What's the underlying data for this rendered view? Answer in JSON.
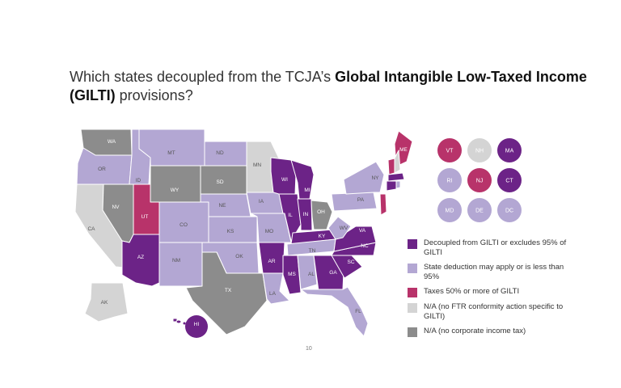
{
  "title": {
    "prefix": "Which states decoupled from the TCJA’s ",
    "bold": "Global Intangible Low-Taxed Income (GILTI)",
    "suffix": " provisions?"
  },
  "colors": {
    "decoupled": "#6c2387",
    "deduction": "#b3a7d3",
    "taxes50": "#b8336a",
    "na_conformity": "#d4d4d4",
    "na_no_tax": "#8c8c8c"
  },
  "legend": [
    {
      "key": "decoupled",
      "label": "Decoupled from GILTI or excludes 95% of GILTI"
    },
    {
      "key": "deduction",
      "label": "State deduction may apply or is less than 95%"
    },
    {
      "key": "taxes50",
      "label": "Taxes 50% or more of GILTI"
    },
    {
      "key": "na_conformity",
      "label": "N/A (no FTR conformity action specific to GILTI)"
    },
    {
      "key": "na_no_tax",
      "label": "N/A (no corporate income tax)"
    }
  ],
  "states": {
    "WA": "na_no_tax",
    "OR": "deduction",
    "CA": "na_conformity",
    "NV": "na_no_tax",
    "ID": "deduction",
    "MT": "deduction",
    "WY": "na_no_tax",
    "UT": "taxes50",
    "AZ": "decoupled",
    "CO": "deduction",
    "NM": "deduction",
    "ND": "deduction",
    "SD": "na_no_tax",
    "NE": "deduction",
    "KS": "deduction",
    "OK": "deduction",
    "TX": "na_no_tax",
    "MN": "na_conformity",
    "IA": "deduction",
    "MO": "deduction",
    "AR": "decoupled",
    "LA": "deduction",
    "WI": "decoupled",
    "IL": "decoupled",
    "MI": "decoupled",
    "IN": "decoupled",
    "OH": "na_no_tax",
    "KY": "decoupled",
    "TN": "deduction",
    "MS": "decoupled",
    "AL": "deduction",
    "GA": "decoupled",
    "FL": "deduction",
    "SC": "decoupled",
    "NC": "decoupled",
    "VA": "decoupled",
    "WV": "deduction",
    "PA": "deduction",
    "NY": "deduction",
    "ME": "taxes50",
    "AK": "na_conformity",
    "HI": "decoupled"
  },
  "northeast_circles": [
    {
      "abbr": "VT",
      "cat": "taxes50"
    },
    {
      "abbr": "NH",
      "cat": "na_conformity"
    },
    {
      "abbr": "MA",
      "cat": "decoupled"
    },
    {
      "abbr": "RI",
      "cat": "deduction"
    },
    {
      "abbr": "NJ",
      "cat": "taxes50"
    },
    {
      "abbr": "CT",
      "cat": "decoupled"
    },
    {
      "abbr": "MD",
      "cat": "deduction"
    },
    {
      "abbr": "DE",
      "cat": "deduction"
    },
    {
      "abbr": "DC",
      "cat": "deduction"
    }
  ],
  "page_number": "10"
}
